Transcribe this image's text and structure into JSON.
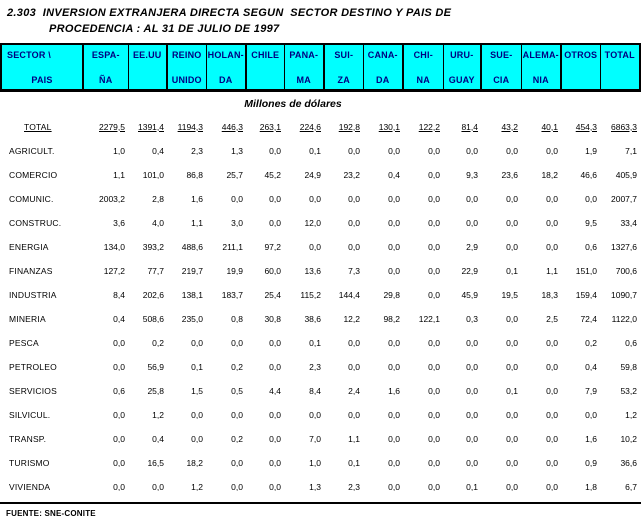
{
  "title": {
    "line1": "2.303  INVERSION EXTRANJERA DIRECTA SEGUN  SECTOR DESTINO Y PAIS DE",
    "line2": "PROCEDENCIA : AL 31 DE JULIO DE 1997"
  },
  "subtitle": "Millones de dólares",
  "table": {
    "corner": {
      "line1": "SECTOR \\",
      "line2": "PAIS"
    },
    "columns": [
      {
        "id": "espana",
        "line1": "ESPA-",
        "line2": "ÑA"
      },
      {
        "id": "eeuu",
        "line1": "EE.UU",
        "line2": ""
      },
      {
        "id": "reino-unido",
        "line1": "REINO",
        "line2": "UNIDO"
      },
      {
        "id": "holanda",
        "line1": "HOLAN-",
        "line2": "DA"
      },
      {
        "id": "chile",
        "line1": "CHILE",
        "line2": ""
      },
      {
        "id": "panama",
        "line1": "PANA-",
        "line2": "MA"
      },
      {
        "id": "suiza",
        "line1": "SUI-",
        "line2": "ZA"
      },
      {
        "id": "canada",
        "line1": "CANA-",
        "line2": "DA"
      },
      {
        "id": "china",
        "line1": "CHI-",
        "line2": "NA"
      },
      {
        "id": "uruguay",
        "line1": "URU-",
        "line2": "GUAY"
      },
      {
        "id": "suecia",
        "line1": "SUE-",
        "line2": "CIA"
      },
      {
        "id": "alemania",
        "line1": "ALEMA-",
        "line2": "NIA"
      },
      {
        "id": "otros",
        "line1": "OTROS",
        "line2": ""
      },
      {
        "id": "total",
        "line1": "TOTAL",
        "line2": ""
      }
    ],
    "total_row": {
      "id": "total",
      "label": "TOTAL",
      "values": [
        "2279,5",
        "1391,4",
        "1194,3",
        "446,3",
        "263,1",
        "224,6",
        "192,8",
        "130,1",
        "122,2",
        "81,4",
        "43,2",
        "40,1",
        "454,3",
        "6863,3"
      ]
    },
    "rows": [
      {
        "id": "agricult",
        "label": "AGRICULT.",
        "values": [
          "1,0",
          "0,4",
          "2,3",
          "1,3",
          "0,0",
          "0,1",
          "0,0",
          "0,0",
          "0,0",
          "0,0",
          "0,0",
          "0,0",
          "1,9",
          "7,1"
        ]
      },
      {
        "id": "comercio",
        "label": "COMERCIO",
        "values": [
          "1,1",
          "101,0",
          "86,8",
          "25,7",
          "45,2",
          "24,9",
          "23,2",
          "0,4",
          "0,0",
          "9,3",
          "23,6",
          "18,2",
          "46,6",
          "405,9"
        ]
      },
      {
        "id": "comunic",
        "label": "COMUNIC.",
        "values": [
          "2003,2",
          "2,8",
          "1,6",
          "0,0",
          "0,0",
          "0,0",
          "0,0",
          "0,0",
          "0,0",
          "0,0",
          "0,0",
          "0,0",
          "0,0",
          "2007,7"
        ]
      },
      {
        "id": "construc",
        "label": "CONSTRUC.",
        "values": [
          "3,6",
          "4,0",
          "1,1",
          "3,0",
          "0,0",
          "12,0",
          "0,0",
          "0,0",
          "0,0",
          "0,0",
          "0,0",
          "0,0",
          "9,5",
          "33,4"
        ]
      },
      {
        "id": "energia",
        "label": "ENERGIA",
        "values": [
          "134,0",
          "393,2",
          "488,6",
          "211,1",
          "97,2",
          "0,0",
          "0,0",
          "0,0",
          "0,0",
          "2,9",
          "0,0",
          "0,0",
          "0,6",
          "1327,6"
        ]
      },
      {
        "id": "finanzas",
        "label": "FINANZAS",
        "values": [
          "127,2",
          "77,7",
          "219,7",
          "19,9",
          "60,0",
          "13,6",
          "7,3",
          "0,0",
          "0,0",
          "22,9",
          "0,1",
          "1,1",
          "151,0",
          "700,6"
        ]
      },
      {
        "id": "industria",
        "label": "INDUSTRIA",
        "values": [
          "8,4",
          "202,6",
          "138,1",
          "183,7",
          "25,4",
          "115,2",
          "144,4",
          "29,8",
          "0,0",
          "45,9",
          "19,5",
          "18,3",
          "159,4",
          "1090,7"
        ]
      },
      {
        "id": "mineria",
        "label": "MINERIA",
        "values": [
          "0,4",
          "508,6",
          "235,0",
          "0,8",
          "30,8",
          "38,6",
          "12,2",
          "98,2",
          "122,1",
          "0,3",
          "0,0",
          "2,5",
          "72,4",
          "1122,0"
        ]
      },
      {
        "id": "pesca",
        "label": "PESCA",
        "values": [
          "0,0",
          "0,2",
          "0,0",
          "0,0",
          "0,0",
          "0,1",
          "0,0",
          "0,0",
          "0,0",
          "0,0",
          "0,0",
          "0,0",
          "0,2",
          "0,6"
        ]
      },
      {
        "id": "petroleo",
        "label": "PETROLEO",
        "values": [
          "0,0",
          "56,9",
          "0,1",
          "0,2",
          "0,0",
          "2,3",
          "0,0",
          "0,0",
          "0,0",
          "0,0",
          "0,0",
          "0,0",
          "0,4",
          "59,8"
        ]
      },
      {
        "id": "servicios",
        "label": "SERVICIOS",
        "values": [
          "0,6",
          "25,8",
          "1,5",
          "0,5",
          "4,4",
          "8,4",
          "2,4",
          "1,6",
          "0,0",
          "0,0",
          "0,1",
          "0,0",
          "7,9",
          "53,2"
        ]
      },
      {
        "id": "silvicul",
        "label": "SILVICUL.",
        "values": [
          "0,0",
          "1,2",
          "0,0",
          "0,0",
          "0,0",
          "0,0",
          "0,0",
          "0,0",
          "0,0",
          "0,0",
          "0,0",
          "0,0",
          "0,0",
          "1,2"
        ]
      },
      {
        "id": "transp",
        "label": "TRANSP.",
        "values": [
          "0,0",
          "0,4",
          "0,0",
          "0,2",
          "0,0",
          "7,0",
          "1,1",
          "0,0",
          "0,0",
          "0,0",
          "0,0",
          "0,0",
          "1,6",
          "10,2"
        ]
      },
      {
        "id": "turismo",
        "label": "TURISMO",
        "values": [
          "0,0",
          "16,5",
          "18,2",
          "0,0",
          "0,0",
          "1,0",
          "0,1",
          "0,0",
          "0,0",
          "0,0",
          "0,0",
          "0,0",
          "0,9",
          "36,6"
        ]
      },
      {
        "id": "vivienda",
        "label": "VIVIENDA",
        "values": [
          "0,0",
          "0,0",
          "1,2",
          "0,0",
          "0,0",
          "1,3",
          "2,3",
          "0,0",
          "0,0",
          "0,1",
          "0,0",
          "0,0",
          "1,8",
          "6,7"
        ]
      }
    ]
  },
  "footer": {
    "source": "FUENTE: SNE-CONITE"
  },
  "colors": {
    "header_bg": "#00ffff",
    "header_text": "#000080",
    "border": "#000000",
    "text": "#000000",
    "background": "#ffffff"
  }
}
